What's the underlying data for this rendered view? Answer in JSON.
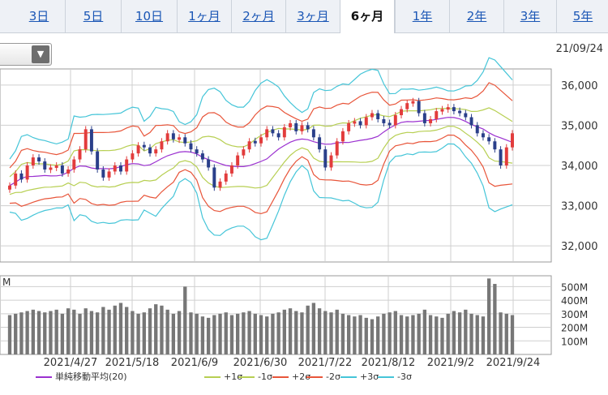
{
  "tabs": [
    {
      "label": "3日"
    },
    {
      "label": "5日"
    },
    {
      "label": "10日"
    },
    {
      "label": "1ヶ月"
    },
    {
      "label": "2ヶ月"
    },
    {
      "label": "3ヶ月"
    },
    {
      "label": "6ヶ月"
    },
    {
      "label": "1年"
    },
    {
      "label": "2年"
    },
    {
      "label": "3年"
    },
    {
      "label": "5年"
    }
  ],
  "active_tab": "6ヶ月",
  "datetime": "21/09/24",
  "volume_unit": "M",
  "legend": [
    {
      "label": "単純移動平均(20)",
      "color": "#9b30d0"
    },
    {
      "label": "+1σ",
      "color": "#b7cf52"
    },
    {
      "label": "-1σ",
      "color": "#b7cf52"
    },
    {
      "label": "+2σ",
      "color": "#e8553a"
    },
    {
      "label": "-2σ",
      "color": "#e8553a"
    },
    {
      "label": "+3σ",
      "color": "#45c5d8"
    },
    {
      "label": "-3σ",
      "color": "#45c5d8"
    }
  ],
  "colors": {
    "up_candle": "#e23c3c",
    "down_candle": "#2a3f8a",
    "volume_bar": "#777777",
    "grid": "#cfcfcf",
    "active_tab_text": "#111111",
    "tab_link": "#1a56b5"
  },
  "chart_data": [
    {
      "type": "candlestick",
      "title": "",
      "x_tick_labels": [
        "2021/4/27",
        "2021/5/18",
        "2021/6/9",
        "2021/6/30",
        "2021/7/22",
        "2021/8/12",
        "2021/9/2",
        "2021/9/24"
      ],
      "y_tick_labels": [
        "36,000",
        "35,000",
        "34,000",
        "33,000",
        "32,000"
      ],
      "ylim": [
        31600,
        36400
      ],
      "grid": true,
      "close": [
        33500,
        33800,
        33650,
        34000,
        34200,
        34100,
        33900,
        33950,
        34000,
        33800,
        33900,
        34150,
        34400,
        34900,
        34350,
        33900,
        33700,
        33850,
        34000,
        33850,
        34150,
        34300,
        34500,
        34450,
        34300,
        34400,
        34600,
        34800,
        34650,
        34700,
        34550,
        34400,
        34300,
        34150,
        33950,
        33450,
        33600,
        33800,
        34000,
        34250,
        34400,
        34600,
        34550,
        34700,
        34900,
        34800,
        34700,
        34950,
        35050,
        34850,
        35000,
        34900,
        34700,
        34400,
        33950,
        34250,
        34600,
        34850,
        35050,
        35100,
        35000,
        35200,
        35300,
        35150,
        35050,
        35000,
        35250,
        35400,
        35550,
        35600,
        35300,
        35050,
        35150,
        35350,
        35400,
        35450,
        35350,
        35300,
        35200,
        35000,
        34800,
        34700,
        34600,
        34400,
        34000,
        34450,
        34800
      ],
      "up_bars": [
        1,
        1,
        0,
        1,
        1,
        0,
        0,
        1,
        1,
        0,
        1,
        1,
        1,
        1,
        0,
        0,
        0,
        1,
        1,
        0,
        1,
        1,
        1,
        0,
        0,
        1,
        1,
        1,
        0,
        1,
        0,
        0,
        0,
        0,
        0,
        0,
        1,
        1,
        1,
        1,
        1,
        1,
        0,
        1,
        1,
        0,
        0,
        1,
        1,
        0,
        1,
        0,
        0,
        0,
        0,
        1,
        1,
        1,
        1,
        1,
        0,
        1,
        1,
        0,
        0,
        0,
        1,
        1,
        1,
        1,
        0,
        0,
        1,
        1,
        1,
        1,
        0,
        0,
        0,
        0,
        0,
        0,
        0,
        0,
        0,
        1,
        1
      ],
      "bollinger": {
        "ma20_start": 32900,
        "ma20_end": 34900,
        "series": [
          {
            "name": "単純移動平均(20)",
            "color": "#9b30d0"
          },
          {
            "name": "+1σ",
            "color": "#b7cf52"
          },
          {
            "name": "-1σ",
            "color": "#b7cf52"
          },
          {
            "name": "+2σ",
            "color": "#e8553a"
          },
          {
            "name": "-2σ",
            "color": "#e8553a"
          },
          {
            "name": "+3σ",
            "color": "#45c5d8"
          },
          {
            "name": "-3σ",
            "color": "#45c5d8"
          }
        ]
      }
    },
    {
      "type": "bar",
      "title": "",
      "unit": "M",
      "y_tick_labels": [
        "500M",
        "400M",
        "300M",
        "200M",
        "100M"
      ],
      "ylim": [
        0,
        580
      ],
      "values": [
        290,
        300,
        310,
        320,
        330,
        320,
        310,
        320,
        330,
        300,
        340,
        330,
        300,
        340,
        320,
        310,
        350,
        330,
        360,
        380,
        350,
        320,
        300,
        310,
        340,
        370,
        360,
        330,
        300,
        320,
        500,
        310,
        300,
        280,
        270,
        290,
        300,
        310,
        290,
        300,
        310,
        320,
        300,
        290,
        280,
        300,
        310,
        330,
        340,
        320,
        310,
        360,
        380,
        340,
        320,
        310,
        330,
        300,
        290,
        280,
        290,
        270,
        260,
        280,
        300,
        310,
        320,
        290,
        280,
        290,
        300,
        330,
        290,
        280,
        270,
        300,
        320,
        310,
        330,
        300,
        290,
        280,
        560,
        520,
        310,
        300,
        290
      ]
    }
  ]
}
